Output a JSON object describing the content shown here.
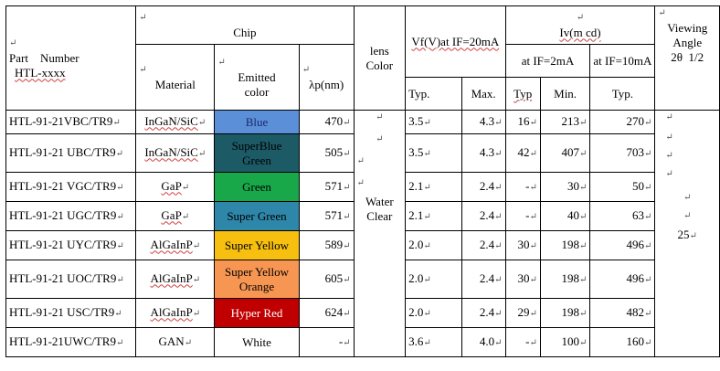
{
  "headers": {
    "part_number_line1": "Part    Number",
    "part_number_line2": "HTL-xxxx",
    "chip": "Chip",
    "material": "Material",
    "emitted_line1": "Emitted",
    "emitted_line2": "color",
    "lambda": "λp(nm)",
    "lens_line1": "lens",
    "lens_line2": "Color",
    "vf": "Vf(V)at IF=20mA",
    "iv": "Iv(m cd)",
    "iv_2ma": "at IF=2mA",
    "iv_10ma": "at IF=10mA",
    "viewing_line1": "Viewing",
    "viewing_line2": "Angle",
    "viewing_line3": "2θ  1/2",
    "vf_typ": "Typ.",
    "vf_max": "Max.",
    "iv_typ2": "Typ",
    "iv_min": "Min.",
    "iv_typ10": "Typ."
  },
  "lens_color_line1": "Water",
  "lens_color_line2": "Clear",
  "viewing_angle_value": "25",
  "mark": "↵",
  "rows": [
    {
      "part": "HTL-91-21VBC/TR9",
      "material": "InGaN/SiC",
      "color_l1": "Blue",
      "color_l2": "",
      "bg": "#5b8fd8",
      "fg": "#1a2a6c",
      "lambda": "470",
      "vf_typ": "3.5",
      "vf_max": "4.3",
      "iv_typ2": "16",
      "iv_min": "213",
      "iv_typ10": "270"
    },
    {
      "part": "HTL-91-21 UBC/TR9",
      "material": "InGaN/SiC",
      "color_l1": "SuperBlue",
      "color_l2": "Green",
      "bg": "#1c5a66",
      "fg": "#000000",
      "lambda": "505",
      "vf_typ": "3.5",
      "vf_max": "4.3",
      "iv_typ2": "42",
      "iv_min": "407",
      "iv_typ10": "703"
    },
    {
      "part": "HTL-91-21 VGC/TR9",
      "material": "GaP",
      "color_l1": "Green",
      "color_l2": "",
      "bg": "#18a84a",
      "fg": "#000000",
      "lambda": "571",
      "vf_typ": "2.1",
      "vf_max": "2.4",
      "iv_typ2": "-",
      "iv_min": "30",
      "iv_typ10": "50"
    },
    {
      "part": "HTL-91-21 UGC/TR9",
      "material": "GaP",
      "color_l1": "Super Green",
      "color_l2": "",
      "bg": "#2e86a8",
      "fg": "#000000",
      "lambda": "571",
      "vf_typ": "2.1",
      "vf_max": "2.4",
      "iv_typ2": "-",
      "iv_min": "40",
      "iv_typ10": "63"
    },
    {
      "part": "HTL-91-21 UYC/TR9",
      "material": "AlGaInP",
      "color_l1": "Super Yellow",
      "color_l2": "",
      "bg": "#f7bf10",
      "fg": "#000000",
      "lambda": "589",
      "vf_typ": "2.0",
      "vf_max": "2.4",
      "iv_typ2": "30",
      "iv_min": "198",
      "iv_typ10": "496"
    },
    {
      "part": "HTL-91-21 UOC/TR9",
      "material": "AlGaInP",
      "color_l1": "Super Yellow",
      "color_l2": "Orange",
      "bg": "#f79652",
      "fg": "#000000",
      "lambda": "605",
      "vf_typ": "2.0",
      "vf_max": "2.4",
      "iv_typ2": "30",
      "iv_min": "198",
      "iv_typ10": "496"
    },
    {
      "part": "HTL-91-21 USC/TR9",
      "material": "AlGaInP",
      "color_l1": "Hyper Red",
      "color_l2": "",
      "bg": "#c00000",
      "fg": "#ffffff",
      "lambda": "624",
      "vf_typ": "2.0",
      "vf_max": "2.4",
      "iv_typ2": "29",
      "iv_min": "198",
      "iv_typ10": "482"
    },
    {
      "part": "HTL-91-21UWC/TR9",
      "material": "GAN",
      "color_l1": "White",
      "color_l2": "",
      "bg": "#ffffff",
      "fg": "#000000",
      "lambda": "-",
      "vf_typ": "3.6",
      "vf_max": "4.0",
      "iv_typ2": "-",
      "iv_min": "100",
      "iv_typ10": "160"
    }
  ]
}
